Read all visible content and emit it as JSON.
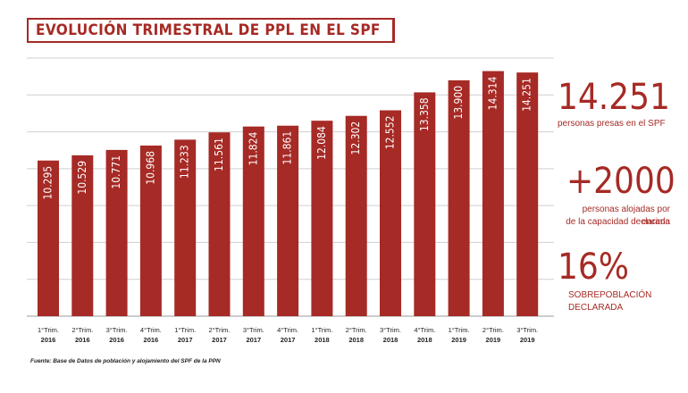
{
  "title": "EVOLUCIÓN TRIMESTRAL DE PPL EN EL SPF",
  "source": "Fuente: Base de Datos de población y alojamiento del SPF de la PPN",
  "colors": {
    "accent": "#a62a25",
    "grid": "#cfcfcf",
    "text": "#ffffff"
  },
  "stats": {
    "stat1_value": "14.251",
    "stat1_label": "personas presas en el SPF",
    "stat2_value": "+2000",
    "stat2_label_line1": "personas alojadas por encima",
    "stat2_label_line2": "de la capacidad declarada",
    "stat3_value": "16%",
    "stat3_label_line1": "SOBREPOBLACIÓN",
    "stat3_label_line2": "DECLARADA"
  },
  "chart_data": {
    "type": "bar",
    "categories": [
      [
        "1°Trim.",
        "2016"
      ],
      [
        "2°Trim.",
        "2016"
      ],
      [
        "3°Trim.",
        "2016"
      ],
      [
        "4°Trim.",
        "2016"
      ],
      [
        "1°Trim.",
        "2017"
      ],
      [
        "2°Trim.",
        "2017"
      ],
      [
        "3°Trim.",
        "2017"
      ],
      [
        "4°Trim.",
        "2017"
      ],
      [
        "1°Trim.",
        "2018"
      ],
      [
        "2°Trim.",
        "2018"
      ],
      [
        "3°Trim.",
        "2018"
      ],
      [
        "4°Trim.",
        "2018"
      ],
      [
        "1°Trim.",
        "2019"
      ],
      [
        "2°Trim.",
        "2019"
      ],
      [
        "3°Trim.",
        "2019"
      ]
    ],
    "values": [
      10295,
      10529,
      10771,
      10968,
      11233,
      11561,
      11824,
      11861,
      12084,
      12302,
      12552,
      13358,
      13900,
      14314,
      14251
    ],
    "value_labels": [
      "10.295",
      "10.529",
      "10.771",
      "10.968",
      "11.233",
      "11.561",
      "11.824",
      "11.861",
      "12.084",
      "12.302",
      "12.552",
      "13.358",
      "13.900",
      "14.314",
      "14.251"
    ],
    "ylim": [
      3300,
      14900
    ],
    "grid": true
  }
}
